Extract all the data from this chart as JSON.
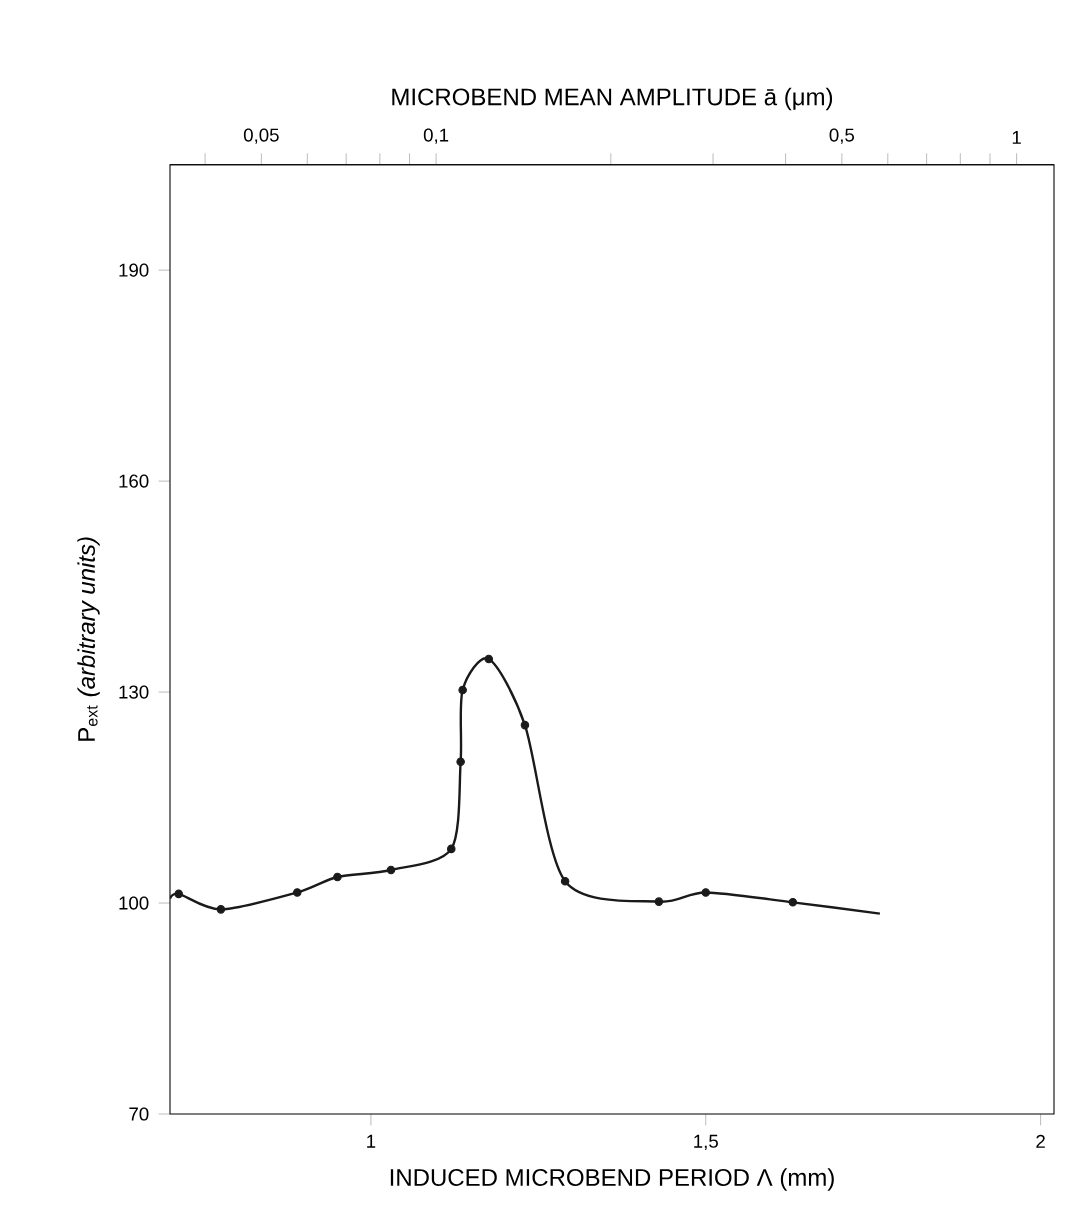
{
  "chart_data": {
    "type": "line",
    "xlabel": "INDUCED MICROBEND PERIOD Λ (mm)",
    "ylabel": "P$_{ext}$ *(arbitrary units)*",
    "x2label": "MICROBEND MEAN AMPLITUDE ā (μm)",
    "xlim": [
      0.7,
      2.02
    ],
    "xticks": [
      1,
      {
        "value": 1.5,
        "label": "1,5"
      },
      2
    ],
    "ylim": [
      70,
      205
    ],
    "yticks": [
      70,
      100,
      130,
      160,
      190
    ],
    "x2lim": [
      0.0348,
      1.16
    ],
    "x2ticks": [
      {
        "value": 0.04,
        "label": null
      },
      {
        "value": 0.05,
        "label": "0,05"
      },
      {
        "value": 0.06,
        "label": null
      },
      {
        "value": 0.07,
        "label": null
      },
      {
        "value": 0.08,
        "label": null
      },
      {
        "value": 0.09,
        "label": null
      },
      {
        "value": 0.1,
        "label": "0,1"
      },
      {
        "value": 0.2,
        "label": null
      },
      {
        "value": 0.3,
        "label": null
      },
      {
        "value": 0.4,
        "label": null
      },
      {
        "value": 0.5,
        "label": "0,5"
      },
      {
        "value": 0.6,
        "label": null
      },
      {
        "value": 0.7,
        "label": null
      },
      {
        "value": 0.8,
        "label": null
      },
      {
        "value": 0.9,
        "label": null
      },
      {
        "value": 1,
        "label": "1"
      }
    ],
    "grid": false,
    "legend": false,
    "log": "x2",
    "series": [
      {
        "color": "#1a1a1a",
        "marker": "none",
        "x": [
          0.7,
          0.713,
          0.776,
          0.89,
          0.95,
          1.03,
          1.12,
          1.134,
          1.137,
          1.176,
          1.23,
          1.29,
          1.43,
          1.5,
          1.63,
          1.76
        ],
        "values": [
          100.6,
          101.3,
          99.1,
          101.5,
          103.7,
          104.7,
          107.7,
          120.1,
          130.3,
          134.7,
          125.3,
          103.1,
          100.2,
          101.5,
          100.1,
          98.5
        ]
      },
      {
        "type": "scatter",
        "color": "#1a1a1a",
        "marker": "circle",
        "x": [
          0.713,
          0.776,
          0.89,
          0.95,
          1.03,
          1.12,
          1.134,
          1.137,
          1.176,
          1.23,
          1.29,
          1.43,
          1.5,
          1.63
        ],
        "values": [
          101.3,
          99.1,
          101.5,
          103.7,
          104.7,
          107.7,
          120.1,
          130.3,
          134.7,
          125.3,
          103.1,
          100.2,
          101.5,
          100.1
        ]
      }
    ]
  }
}
